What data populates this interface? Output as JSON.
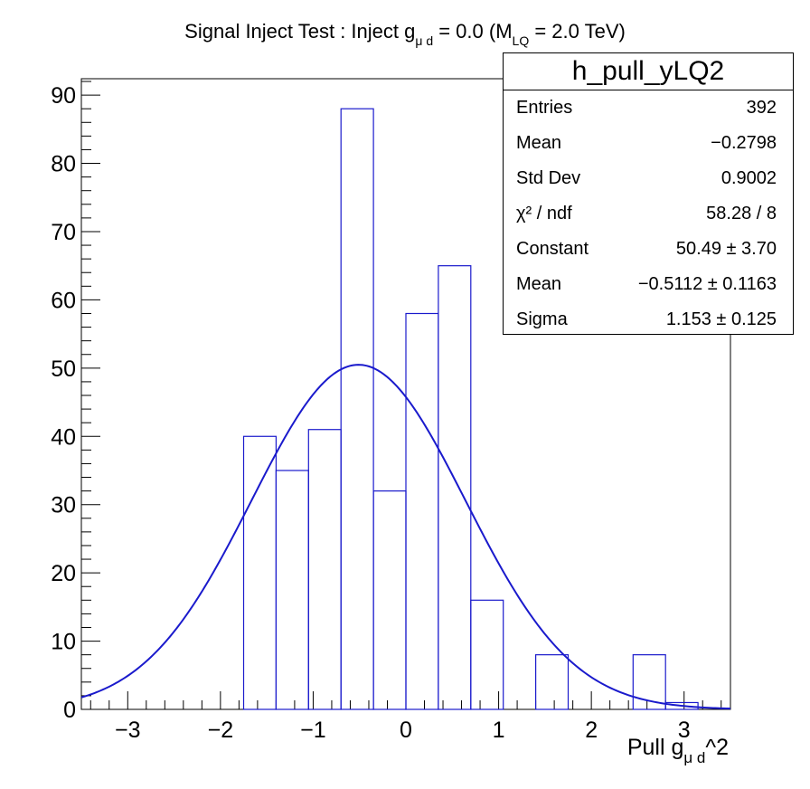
{
  "title": {
    "prefix": "Signal Inject Test : Inject g",
    "coupling_sub": "μ d",
    "middle": " = 0.0 (M",
    "mass_sub": "LQ",
    "suffix": " = 2.0 TeV)"
  },
  "stats_box": {
    "name": "h_pull_yLQ2",
    "rows": [
      {
        "key": "Entries",
        "value": "392"
      },
      {
        "key": "Mean",
        "value": "−0.2798"
      },
      {
        "key": "Std Dev",
        "value": "0.9002"
      },
      {
        "key": "χ² / ndf",
        "value": "58.28 / 8"
      },
      {
        "key": "Constant",
        "value": "50.49 ± 3.70"
      },
      {
        "key": "Mean",
        "value": "−0.5112 ± 0.1163"
      },
      {
        "key": "Sigma",
        "value": "1.153 ± 0.125"
      }
    ]
  },
  "x_label": {
    "prefix": "Pull g",
    "sub": "μ d",
    "suffix": "^2"
  },
  "colors": {
    "histogram": "#1a1acc",
    "fit": "#1a1acc",
    "frame": "#000000",
    "background": "#ffffff"
  },
  "chart_data": {
    "type": "histogram",
    "xlim": [
      -3.5,
      3.5
    ],
    "ylim": [
      0,
      92.4
    ],
    "bin_edges": [
      -3.5,
      -3.15,
      -2.8,
      -2.45,
      -2.1,
      -1.75,
      -1.4,
      -1.05,
      -0.7,
      -0.35,
      0.0,
      0.35,
      0.7,
      1.05,
      1.4,
      1.75,
      2.1,
      2.45,
      2.8,
      3.15,
      3.5
    ],
    "counts": [
      0,
      0,
      0,
      0,
      0,
      40,
      35,
      41,
      88,
      32,
      58,
      65,
      16,
      0,
      8,
      0,
      0,
      8,
      1,
      0
    ],
    "x_ticks": [
      -3,
      -2,
      -1,
      0,
      1,
      2,
      3
    ],
    "x_tick_labels": [
      "−3",
      "−2",
      "−1",
      "0",
      "1",
      "2",
      "3"
    ],
    "y_ticks": [
      0,
      10,
      20,
      30,
      40,
      50,
      60,
      70,
      80,
      90
    ],
    "y_tick_labels": [
      "0",
      "10",
      "20",
      "30",
      "40",
      "50",
      "60",
      "70",
      "80",
      "90"
    ],
    "fit": {
      "type": "gaus",
      "constant": 50.49,
      "mean": -0.5112,
      "sigma": 1.153
    }
  }
}
